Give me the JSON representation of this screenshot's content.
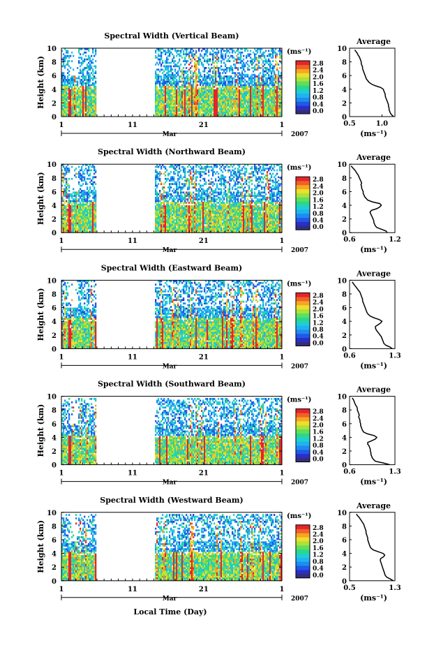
{
  "figure": {
    "xlabel": "Local Time (Day)",
    "month": "Mar",
    "year": "2007",
    "ylabel": "Height (km)",
    "unit_label": "(ms⁻¹)",
    "avg_title": "Average",
    "avg_xlabel": "(ms⁻¹)",
    "x_ticklabels": [
      "1",
      "11",
      "21",
      "1"
    ],
    "y_ticklabels": [
      "0",
      "2",
      "4",
      "6",
      "8",
      "10"
    ],
    "colorbar_ticks": [
      "0.0",
      "0.4",
      "0.8",
      "1.2",
      "1.6",
      "2.0",
      "2.4",
      "2.8"
    ],
    "colors": {
      "gap": "#ffffff",
      "colorbar": [
        "#30307a",
        "#2d2dc8",
        "#1f5ae6",
        "#1e8cf0",
        "#1eb4f0",
        "#1ecfd2",
        "#2ed68c",
        "#5ee05a",
        "#b0e03a",
        "#ece02a",
        "#f5a623",
        "#f2602a",
        "#e3262a"
      ]
    }
  },
  "chart_data": [
    {
      "type": "heatmap",
      "title": "Spectral Width (Vertical Beam)",
      "x_range": [
        1,
        32
      ],
      "y_range": [
        0,
        10
      ],
      "avg_profile": {
        "xlim": [
          0.5,
          1.2
        ],
        "xticks": [
          "0.5",
          "1.0"
        ],
        "height": [
          0,
          0.25,
          0.5,
          0.75,
          1,
          1.25,
          1.5,
          1.75,
          2,
          2.25,
          2.5,
          2.75,
          3,
          3.25,
          3.5,
          3.75,
          4,
          4.25,
          4.5,
          4.75,
          5,
          5.25,
          5.5,
          5.75,
          6,
          6.25,
          6.5,
          6.75,
          7,
          7.25,
          7.5,
          7.75,
          8,
          8.25,
          8.5,
          8.75,
          9,
          9.25,
          9.5,
          9.75
        ],
        "width": [
          1.18,
          1.15,
          1.13,
          1.12,
          1.11,
          1.11,
          1.1,
          1.1,
          1.09,
          1.08,
          1.07,
          1.06,
          1.05,
          1.05,
          1.04,
          1.03,
          1.02,
          0.98,
          0.9,
          0.84,
          0.8,
          0.78,
          0.76,
          0.75,
          0.74,
          0.73,
          0.72,
          0.71,
          0.7,
          0.7,
          0.69,
          0.68,
          0.68,
          0.67,
          0.66,
          0.65,
          0.63,
          0.62,
          0.6,
          0.58
        ]
      }
    },
    {
      "type": "heatmap",
      "title": "Spectral Width (Northward Beam)",
      "x_range": [
        1,
        32
      ],
      "y_range": [
        0,
        10
      ],
      "avg_profile": {
        "xlim": [
          0.6,
          1.2
        ],
        "xticks": [
          "0.6",
          "1.2"
        ],
        "height": [
          0,
          0.25,
          0.5,
          0.75,
          1,
          1.25,
          1.5,
          1.75,
          2,
          2.25,
          2.5,
          2.75,
          3,
          3.25,
          3.5,
          3.75,
          4,
          4.25,
          4.5,
          4.75,
          5,
          5.25,
          5.5,
          5.75,
          6,
          6.25,
          6.5,
          6.75,
          7,
          7.25,
          7.5,
          7.75,
          8,
          8.25,
          8.5,
          8.75,
          9,
          9.25,
          9.5,
          9.75
        ],
        "width": [
          1.1,
          1.08,
          1.02,
          0.96,
          0.94,
          0.93,
          0.92,
          0.92,
          0.91,
          0.9,
          0.89,
          0.88,
          0.87,
          0.89,
          0.96,
          1.0,
          1.02,
          1.0,
          0.9,
          0.84,
          0.82,
          0.8,
          0.79,
          0.78,
          0.78,
          0.77,
          0.76,
          0.76,
          0.75,
          0.76,
          0.75,
          0.74,
          0.73,
          0.72,
          0.71,
          0.69,
          0.68,
          0.66,
          0.64,
          0.62
        ]
      }
    },
    {
      "type": "heatmap",
      "title": "Spectral Width (Eastward Beam)",
      "x_range": [
        1,
        32
      ],
      "y_range": [
        0,
        10
      ],
      "avg_profile": {
        "xlim": [
          0.6,
          1.3
        ],
        "xticks": [
          "0.6",
          "1.3"
        ],
        "height": [
          0,
          0.25,
          0.5,
          0.75,
          1,
          1.25,
          1.5,
          1.75,
          2,
          2.25,
          2.5,
          2.75,
          3,
          3.25,
          3.5,
          3.75,
          4,
          4.25,
          4.5,
          4.75,
          5,
          5.25,
          5.5,
          5.75,
          6,
          6.25,
          6.5,
          6.75,
          7,
          7.25,
          7.5,
          7.75,
          8,
          8.25,
          8.5,
          8.75,
          9,
          9.25,
          9.5,
          9.75
        ],
        "width": [
          1.26,
          1.22,
          1.16,
          1.13,
          1.12,
          1.11,
          1.1,
          1.09,
          1.07,
          1.05,
          1.03,
          1.01,
          1.0,
          1.0,
          1.04,
          1.08,
          1.1,
          1.06,
          0.98,
          0.92,
          0.89,
          0.87,
          0.86,
          0.85,
          0.84,
          0.83,
          0.82,
          0.81,
          0.8,
          0.8,
          0.79,
          0.78,
          0.77,
          0.76,
          0.74,
          0.72,
          0.7,
          0.68,
          0.66,
          0.64
        ]
      }
    },
    {
      "type": "heatmap",
      "title": "Spectral Width (Southward Beam)",
      "x_range": [
        1,
        32
      ],
      "y_range": [
        0,
        10
      ],
      "avg_profile": {
        "xlim": [
          0.6,
          1.3
        ],
        "xticks": [
          "0.6",
          "1.3"
        ],
        "height": [
          0,
          0.25,
          0.5,
          0.75,
          1,
          1.25,
          1.5,
          1.75,
          2,
          2.25,
          2.5,
          2.75,
          3,
          3.25,
          3.5,
          3.75,
          4,
          4.25,
          4.5,
          4.75,
          5,
          5.25,
          5.5,
          5.75,
          6,
          6.25,
          6.5,
          6.75,
          7,
          7.25,
          7.5,
          7.75,
          8,
          8.25,
          8.5,
          8.75,
          9,
          9.25,
          9.5,
          9.75
        ],
        "width": [
          1.22,
          1.12,
          1.0,
          0.97,
          0.95,
          0.94,
          0.93,
          0.93,
          0.92,
          0.92,
          0.91,
          0.9,
          0.88,
          0.88,
          0.94,
          1.0,
          1.02,
          0.98,
          0.88,
          0.82,
          0.8,
          0.79,
          0.78,
          0.77,
          0.77,
          0.76,
          0.76,
          0.75,
          0.74,
          0.75,
          0.74,
          0.73,
          0.72,
          0.72,
          0.71,
          0.69,
          0.68,
          0.67,
          0.66,
          0.64
        ]
      }
    },
    {
      "type": "heatmap",
      "title": "Spectral Width (Westward Beam)",
      "x_range": [
        1,
        32
      ],
      "y_range": [
        0,
        10
      ],
      "avg_profile": {
        "xlim": [
          0.5,
          1.3
        ],
        "xticks": [
          "0.5",
          "1.3"
        ],
        "height": [
          0,
          0.25,
          0.5,
          0.75,
          1,
          1.25,
          1.5,
          1.75,
          2,
          2.25,
          2.5,
          2.75,
          3,
          3.25,
          3.5,
          3.75,
          4,
          4.25,
          4.5,
          4.75,
          5,
          5.25,
          5.5,
          5.75,
          6,
          6.25,
          6.5,
          6.75,
          7,
          7.25,
          7.5,
          7.75,
          8,
          8.25,
          8.5,
          8.75,
          9,
          9.25,
          9.5,
          9.75
        ],
        "width": [
          1.27,
          1.22,
          1.16,
          1.13,
          1.12,
          1.11,
          1.1,
          1.09,
          1.08,
          1.07,
          1.06,
          1.05,
          1.04,
          1.05,
          1.1,
          1.12,
          1.09,
          1.0,
          0.92,
          0.88,
          0.86,
          0.85,
          0.84,
          0.83,
          0.82,
          0.82,
          0.81,
          0.8,
          0.79,
          0.79,
          0.78,
          0.77,
          0.76,
          0.75,
          0.73,
          0.71,
          0.69,
          0.67,
          0.64,
          0.62
        ]
      }
    }
  ]
}
